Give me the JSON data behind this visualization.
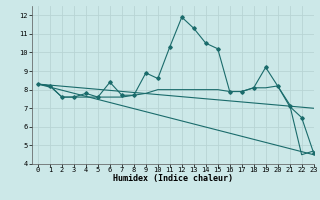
{
  "xlabel": "Humidex (Indice chaleur)",
  "xlim": [
    -0.5,
    23
  ],
  "ylim": [
    4,
    12.5
  ],
  "yticks": [
    4,
    5,
    6,
    7,
    8,
    9,
    10,
    11,
    12
  ],
  "xticks": [
    0,
    1,
    2,
    3,
    4,
    5,
    6,
    7,
    8,
    9,
    10,
    11,
    12,
    13,
    14,
    15,
    16,
    17,
    18,
    19,
    20,
    21,
    22,
    23
  ],
  "bg_color": "#cce8e8",
  "grid_color": "#b8d4d4",
  "line_color": "#1a6b6b",
  "lines": [
    {
      "x": [
        0,
        1,
        2,
        3,
        4,
        5,
        6,
        7,
        8,
        9,
        10,
        11,
        12,
        13,
        14,
        15,
        16,
        17,
        18,
        19,
        20,
        21,
        22,
        23
      ],
      "y": [
        8.3,
        8.2,
        7.6,
        7.6,
        7.8,
        7.6,
        8.4,
        7.7,
        7.7,
        8.9,
        8.6,
        10.3,
        11.9,
        11.3,
        10.5,
        10.2,
        7.9,
        7.9,
        8.1,
        9.2,
        8.2,
        7.1,
        6.5,
        4.6
      ],
      "marker": "D",
      "markersize": 1.8
    },
    {
      "x": [
        0,
        1,
        2,
        3,
        4,
        5,
        6,
        7,
        8,
        9,
        10,
        11,
        12,
        13,
        14,
        15,
        16,
        17,
        18,
        19,
        20,
        21,
        22,
        23
      ],
      "y": [
        8.3,
        8.2,
        7.6,
        7.6,
        7.6,
        7.6,
        7.6,
        7.6,
        7.7,
        7.8,
        8.0,
        8.0,
        8.0,
        8.0,
        8.0,
        8.0,
        7.9,
        7.9,
        8.1,
        8.1,
        8.2,
        7.2,
        4.5,
        4.7
      ],
      "marker": null
    },
    {
      "x": [
        0,
        23
      ],
      "y": [
        8.3,
        7.0
      ],
      "marker": null
    },
    {
      "x": [
        0,
        23
      ],
      "y": [
        8.3,
        4.5
      ],
      "marker": null
    }
  ]
}
